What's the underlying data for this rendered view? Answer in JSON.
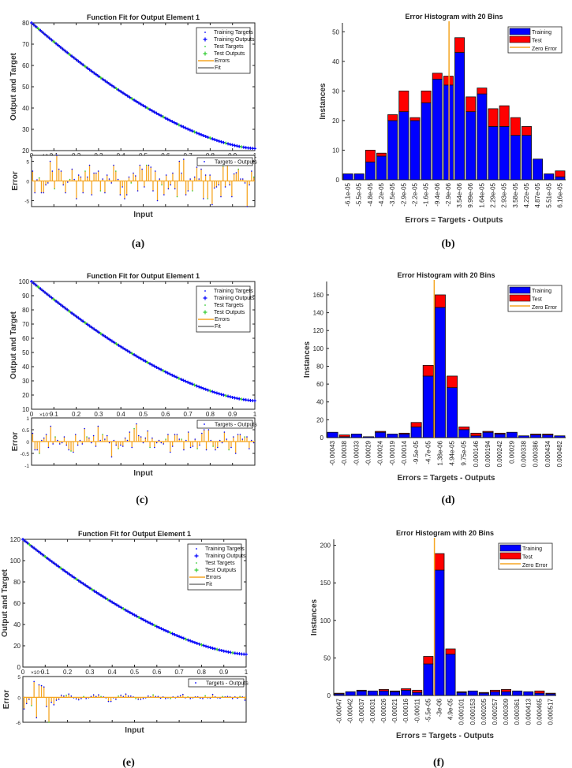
{
  "colors": {
    "training": "#0000ff",
    "test": "#ff0000",
    "test_marker": "#33cc33",
    "errors": "#f5a623",
    "zero_error": "#f5a623",
    "fit": "#333333",
    "axis": "#222222"
  },
  "chart_data": [
    {
      "id": "a",
      "caption": "(a)",
      "type": "line",
      "title": "Function Fit for Output Element 1",
      "xlabel": "Input",
      "ylabel": "Output and Target",
      "xlim": [
        0,
        1
      ],
      "ylim": [
        20,
        80
      ],
      "xticks": [
        "0",
        "0.1",
        "0.2",
        "0.3",
        "0.4",
        "0.5",
        "0.6",
        "0.7",
        "0.8",
        "0.9",
        "1"
      ],
      "yticks": [
        20,
        30,
        40,
        50,
        60,
        70,
        80
      ],
      "fit": {
        "y_start": 80,
        "y_end": 21,
        "shape": "decreasing-convex"
      },
      "legend": [
        "Training Targets",
        "Training Outputs",
        "Test Targets",
        "Test Outputs",
        "Errors",
        "Fit"
      ],
      "error_plot": {
        "ylabel": "Error",
        "multiplier": "×10⁻⁵",
        "ylim": [
          -6.5,
          6.5
        ],
        "yticks": [
          -5,
          0,
          5
        ],
        "legend": "Targets - Outputs",
        "values": [
          2.5,
          -3,
          0.3,
          0.8,
          -3,
          -3,
          -1,
          -0.5,
          5,
          2.5,
          -2,
          6.5,
          3,
          2.5,
          -1,
          -3,
          -0.3,
          0.4,
          3,
          0.4,
          -4.5,
          1.5,
          1,
          -3,
          2.5,
          1,
          4,
          -3.5,
          2,
          2,
          2.5,
          -2.5,
          0.5,
          -3,
          1.5,
          0.5,
          -0.5,
          4,
          2.5,
          0.4,
          -3.5,
          -1.5,
          -4.5,
          -3.5,
          1,
          -0.5,
          2,
          1.3,
          -2.5,
          4,
          3,
          -1.5,
          4,
          4,
          3.5,
          -2.5,
          2.5,
          -5,
          0.5,
          -1,
          -3.5,
          1.5,
          -2,
          -1,
          2,
          -2,
          -4,
          5,
          2,
          5.5,
          -3.5,
          -2.5,
          0.5,
          -2.5,
          1,
          3.5,
          0.5,
          3,
          -4.5,
          1.5,
          -4.5,
          1.5,
          -6,
          -1.8,
          -1.5,
          -1,
          -4,
          3.8,
          -1.5,
          4,
          -1,
          -4,
          1.8,
          2.1,
          3,
          0.5,
          0.5,
          -0.5,
          -6.5,
          -1,
          2.5,
          1
        ]
      }
    },
    {
      "id": "b",
      "caption": "(b)",
      "type": "bar",
      "title": "Error Histogram with 20 Bins",
      "xlabel": "Errors = Targets - Outputs",
      "ylabel": "Instances",
      "ylim": [
        0,
        53
      ],
      "yticks": [
        0,
        10,
        20,
        30,
        40,
        50
      ],
      "categories": [
        "-6.1e-05",
        "-5.5e-05",
        "-4.8e-05",
        "-4.2e-05",
        "-3.5e-05",
        "-2.9e-05",
        "-2.2e-05",
        "-1.6e-05",
        "-9.4e-06",
        "-2.9e-06",
        "3.54e-06",
        "9.99e-06",
        "1.64e-05",
        "2.29e-05",
        "2.93e-05",
        "3.58e-05",
        "4.22e-05",
        "4.87e-05",
        "5.51e-05",
        "6.16e-05"
      ],
      "series": [
        {
          "name": "Training",
          "values": [
            2,
            2,
            6,
            8,
            20,
            23,
            20,
            26,
            34,
            32,
            43,
            23,
            29,
            18,
            18,
            15,
            15,
            7,
            2,
            1
          ]
        },
        {
          "name": "Test",
          "values": [
            0,
            0,
            4,
            1,
            2,
            7,
            1,
            4,
            2,
            3,
            5,
            5,
            2,
            6,
            7,
            6,
            3,
            0,
            0,
            2
          ]
        }
      ],
      "zero_error_bin": 9.55,
      "legend": [
        "Training",
        "Test",
        "Zero Error"
      ],
      "legend_position": "top-right"
    },
    {
      "id": "c",
      "caption": "(c)",
      "type": "line",
      "title": "Function Fit for Output Element 1",
      "xlabel": "Input",
      "ylabel": "Output and Target",
      "xlim": [
        0,
        1
      ],
      "ylim": [
        10,
        100
      ],
      "xticks": [
        "0",
        "0.1",
        "0.2",
        "0.3",
        "0.4",
        "0.5",
        "0.6",
        "0.7",
        "0.8",
        "0.9",
        "1"
      ],
      "yticks": [
        10,
        20,
        30,
        40,
        50,
        60,
        70,
        80,
        90,
        100
      ],
      "fit": {
        "y_start": 100,
        "y_end": 16,
        "shape": "decreasing-convex"
      },
      "legend": [
        "Training Targets",
        "Training Outputs",
        "Test Targets",
        "Test Outputs",
        "Errors",
        "Fit"
      ],
      "error_plot": {
        "ylabel": "Error",
        "multiplier": "×10⁻⁴",
        "ylim": [
          -1,
          1
        ],
        "yticks": [
          -1,
          -0.5,
          0,
          0.5,
          1
        ],
        "legend": "Targets - Outputs",
        "values": [
          0.35,
          -0.35,
          -0.35,
          -0.5,
          0.05,
          0.15,
          0.3,
          -0.25,
          0.65,
          -0.1,
          0.2,
          0.05,
          -0.1,
          -0.05,
          0.2,
          -0.15,
          -0.35,
          -0.4,
          -0.45,
          0.3,
          -0.15,
          0.05,
          -0.1,
          0.55,
          0.2,
          0.15,
          -0.05,
          0.25,
          -0.2,
          0.65,
          0.05,
          0.3,
          0.1,
          0.25,
          -0.05,
          -0.65,
          0.05,
          -0.15,
          -0.3,
          -0.15,
          -0.2,
          0.15,
          0.05,
          0.4,
          -0.25,
          0.55,
          0.75,
          0.25,
          0.2,
          -0.05,
          0.15,
          0.45,
          -0.25,
          0.15,
          -0.25,
          -0.05,
          0.05,
          -0.05,
          -0.1,
          0.1,
          0.3,
          -0.45,
          -0.2,
          0.3,
          0.3,
          0.1,
          0.1,
          -0.35,
          0.05,
          0.4,
          -0.25,
          -0.2,
          0.1,
          -0.3,
          -0.15,
          0.35,
          0.5,
          -0.35,
          0.5,
          0.05,
          -0.2,
          -0.35,
          -0.25,
          0.05,
          -0.05,
          0.4,
          0.1,
          -0.35,
          -0.25,
          0.2,
          -0.5,
          0.3,
          0.3,
          0.1,
          0.2,
          0.2,
          -0.3,
          0.05,
          -0.05
        ]
      }
    },
    {
      "id": "d",
      "caption": "(d)",
      "type": "bar",
      "title": "Error Histogram with 20 Bins",
      "xlabel": "Errors = Targets - Outputs",
      "ylabel": "Instances",
      "ylim": [
        0,
        175
      ],
      "yticks": [
        0,
        20,
        40,
        60,
        80,
        100,
        120,
        140,
        160
      ],
      "categories": [
        "-0.00043",
        "-0.00038",
        "-0.00033",
        "-0.00029",
        "-0.00024",
        "-0.00019",
        "-0.00014",
        "-9.5e-05",
        "-4.7e-05",
        "1.38e-06",
        "4.94e-05",
        "9.75e-05",
        "0.000146",
        "0.000194",
        "0.000242",
        "0.00029",
        "0.000338",
        "0.000386",
        "0.000434",
        "0.000482"
      ],
      "series": [
        {
          "name": "Training",
          "values": [
            6,
            1,
            4,
            1,
            6,
            4,
            4,
            12,
            69,
            146,
            56,
            9,
            2,
            6,
            4,
            6,
            2,
            3,
            3,
            2
          ]
        },
        {
          "name": "Test",
          "values": [
            0,
            2,
            0,
            0,
            1,
            0,
            1,
            5,
            12,
            14,
            13,
            3,
            3,
            1,
            1,
            0,
            0,
            1,
            1,
            0
          ]
        }
      ],
      "zero_error_bin": 9.0,
      "legend": [
        "Training",
        "Test",
        "Zero Error"
      ],
      "legend_position": "top-right"
    },
    {
      "id": "e",
      "caption": "(e)",
      "type": "line",
      "title": "Function Fit for Output Element 1",
      "xlabel": "Input",
      "ylabel": "Output and Target",
      "xlim": [
        0,
        1
      ],
      "ylim": [
        0,
        120
      ],
      "xticks": [
        "0",
        "0.1",
        "0.2",
        "0.3",
        "0.4",
        "0.5",
        "0.6",
        "0.7",
        "0.8",
        "0.9",
        "1"
      ],
      "yticks": [
        0,
        20,
        40,
        60,
        80,
        100,
        120
      ],
      "fit": {
        "y_start": 120,
        "y_end": 12,
        "shape": "decreasing-convex"
      },
      "legend": [
        "Training Targets",
        "Training Outputs",
        "Test Targets",
        "Test Outputs",
        "Errors",
        "Fit"
      ],
      "error_plot": {
        "ylabel": "Error",
        "multiplier": "×10⁻⁴",
        "ylim": [
          -6,
          5
        ],
        "yticks": [
          -6,
          0,
          5
        ],
        "legend": "Targets - Outputs",
        "values": [
          -2.8,
          -1.5,
          -0.5,
          -2,
          3.8,
          -4.9,
          3,
          2.8,
          2.5,
          -2.2,
          -6,
          -1.2,
          -1.8,
          -0.7,
          -0.5,
          0.5,
          0.3,
          0.5,
          0.8,
          0.3,
          -0.1,
          -0.4,
          -0.6,
          -0.3,
          0.2,
          -0.3,
          -0.1,
          0.2,
          0.6,
          0.2,
          0.6,
          0.2,
          0.1,
          -0.1,
          -1,
          -1,
          -0.1,
          -0.5,
          0.3,
          0.5,
          0.2,
          0.8,
          0.3,
          0.3,
          0.1,
          -0.3,
          -0.5,
          -0.5,
          -0.3,
          -0.1,
          0.3,
          0.1,
          0.6,
          0.2,
          0.2,
          -0.2,
          0.1,
          -0.3,
          -0.1,
          -0.3,
          0.1,
          -0.1,
          0.2,
          0.4,
          0.7,
          -0.1,
          0.1,
          -0.3,
          -0.1,
          0.1,
          0.1,
          -0.2,
          -0.3,
          0.4,
          -0.1,
          -0.2,
          0.7,
          0.1,
          -0.1,
          -0.2,
          0.2,
          0.1,
          0.2,
          0.1,
          -0.3,
          0.1,
          -0.2,
          0.2,
          0.1,
          -0.7
        ]
      }
    },
    {
      "id": "f",
      "caption": "(f)",
      "type": "bar",
      "title": "Error Histogram with 20 Bins",
      "xlabel": "Errors = Targets - Outputs",
      "ylabel": "Instances",
      "ylim": [
        0,
        208
      ],
      "yticks": [
        0,
        50,
        100,
        150,
        200
      ],
      "categories": [
        "-0.00047",
        "-0.00042",
        "-0.00037",
        "-0.00031",
        "-0.00026",
        "-0.00021",
        "-0.00016",
        "-0.00011",
        "-5.5e-05",
        "-3e-06",
        "4.9e-05",
        "0.000101",
        "0.000153",
        "0.000205",
        "0.000257",
        "0.000309",
        "0.000361",
        "0.000413",
        "0.000465",
        "0.000517"
      ],
      "series": [
        {
          "name": "Training",
          "values": [
            2,
            5,
            6,
            6,
            6,
            5,
            7,
            4,
            42,
            167,
            55,
            4,
            6,
            3,
            5,
            5,
            6,
            5,
            3,
            2
          ]
        },
        {
          "name": "Test",
          "values": [
            1,
            0,
            1,
            0,
            2,
            1,
            2,
            3,
            10,
            22,
            7,
            1,
            0,
            1,
            2,
            3,
            0,
            0,
            3,
            1
          ]
        }
      ],
      "zero_error_bin": 9.05,
      "legend": [
        "Training",
        "Test",
        "Zero Error"
      ],
      "legend_position": "top-right"
    }
  ]
}
